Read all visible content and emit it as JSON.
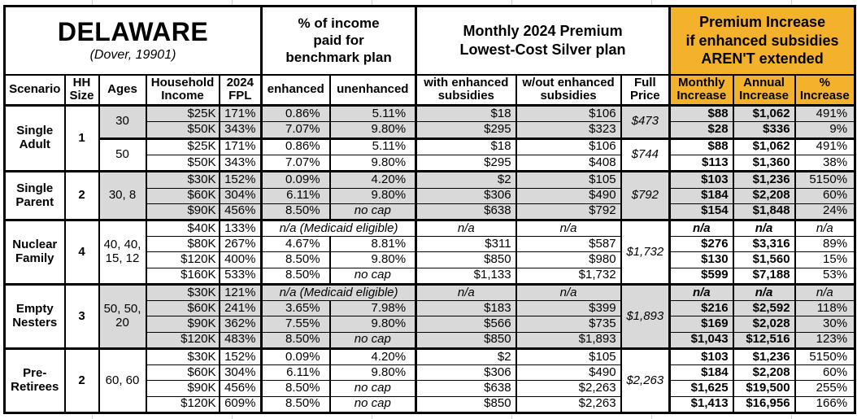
{
  "header": {
    "region": "DELAWARE",
    "location": "(Dover, 19901)",
    "income_pct_title": "% of income\npaid for\nbenchmark plan",
    "premium_title": "Monthly 2024 Premium\nLowest-Cost Silver plan",
    "increase_title": "Premium Increase\nif enhanced subsidies\nAREN'T extended"
  },
  "columns": [
    "Scenario",
    "HH\nSize",
    "Ages",
    "Household\nIncome",
    "2024\nFPL",
    "enhanced",
    "unenhanced",
    "with enhanced\nsubsidies",
    "w/out enhanced\nsubsidies",
    "Full\nPrice",
    "Monthly\nIncrease",
    "Annual\nIncrease",
    "%\nIncrease"
  ],
  "labels": {
    "medicaid": "n/a (Medicaid eligible)",
    "no_cap": "no cap",
    "na": "n/a"
  },
  "colors": {
    "accent_orange": "#F4B22C",
    "row_shade": "#D9D9D9",
    "border": "#000000"
  },
  "groups": [
    {
      "scenario": "Single\nAdult",
      "hh_size": "1",
      "blocks": [
        {
          "ages": "30",
          "shaded": true,
          "full_price": "$473",
          "rows": [
            {
              "income": "$25K",
              "fpl": "171%",
              "enhanced": "0.86%",
              "unenhanced": "5.11%",
              "with_sub": "$18",
              "wout_sub": "$106",
              "monthly": "$88",
              "annual": "$1,062",
              "pct": "491%"
            },
            {
              "income": "$50K",
              "fpl": "343%",
              "enhanced": "7.07%",
              "unenhanced": "9.80%",
              "with_sub": "$295",
              "wout_sub": "$323",
              "monthly": "$28",
              "annual": "$336",
              "pct": "9%"
            }
          ]
        },
        {
          "ages": "50",
          "shaded": false,
          "full_price": "$744",
          "rows": [
            {
              "income": "$25K",
              "fpl": "171%",
              "enhanced": "0.86%",
              "unenhanced": "5.11%",
              "with_sub": "$18",
              "wout_sub": "$106",
              "monthly": "$88",
              "annual": "$1,062",
              "pct": "491%"
            },
            {
              "income": "$50K",
              "fpl": "343%",
              "enhanced": "7.07%",
              "unenhanced": "9.80%",
              "with_sub": "$295",
              "wout_sub": "$408",
              "monthly": "$113",
              "annual": "$1,360",
              "pct": "38%"
            }
          ]
        }
      ]
    },
    {
      "scenario": "Single\nParent",
      "hh_size": "2",
      "blocks": [
        {
          "ages": "30, 8",
          "shaded": true,
          "full_price": "$792",
          "rows": [
            {
              "income": "$30K",
              "fpl": "152%",
              "enhanced": "0.09%",
              "unenhanced": "4.20%",
              "with_sub": "$2",
              "wout_sub": "$105",
              "monthly": "$103",
              "annual": "$1,236",
              "pct": "5150%"
            },
            {
              "income": "$60K",
              "fpl": "304%",
              "enhanced": "6.11%",
              "unenhanced": "9.80%",
              "with_sub": "$306",
              "wout_sub": "$490",
              "monthly": "$184",
              "annual": "$2,208",
              "pct": "60%"
            },
            {
              "income": "$90K",
              "fpl": "456%",
              "enhanced": "8.50%",
              "unenhanced": "no cap",
              "with_sub": "$638",
              "wout_sub": "$792",
              "monthly": "$154",
              "annual": "$1,848",
              "pct": "24%"
            }
          ]
        }
      ]
    },
    {
      "scenario": "Nuclear\nFamily",
      "hh_size": "4",
      "blocks": [
        {
          "ages": "40, 40,\n15, 12",
          "shaded": false,
          "full_price": "$1,732",
          "rows": [
            {
              "income": "$40K",
              "fpl": "133%",
              "medicaid": true,
              "with_sub": "n/a",
              "wout_sub": "n/a",
              "monthly": "n/a",
              "annual": "n/a",
              "pct": "n/a"
            },
            {
              "income": "$80K",
              "fpl": "267%",
              "enhanced": "4.67%",
              "unenhanced": "8.81%",
              "with_sub": "$311",
              "wout_sub": "$587",
              "monthly": "$276",
              "annual": "$3,316",
              "pct": "89%"
            },
            {
              "income": "$120K",
              "fpl": "400%",
              "enhanced": "8.50%",
              "unenhanced": "9.80%",
              "with_sub": "$850",
              "wout_sub": "$980",
              "monthly": "$130",
              "annual": "$1,560",
              "pct": "15%"
            },
            {
              "income": "$160K",
              "fpl": "533%",
              "enhanced": "8.50%",
              "unenhanced": "no cap",
              "with_sub": "$1,133",
              "wout_sub": "$1,732",
              "monthly": "$599",
              "annual": "$7,188",
              "pct": "53%"
            }
          ]
        }
      ]
    },
    {
      "scenario": "Empty\nNesters",
      "hh_size": "3",
      "blocks": [
        {
          "ages": "50, 50,\n20",
          "shaded": true,
          "full_price": "$1,893",
          "rows": [
            {
              "income": "$30K",
              "fpl": "121%",
              "medicaid": true,
              "with_sub": "n/a",
              "wout_sub": "n/a",
              "monthly": "n/a",
              "annual": "n/a",
              "pct": "n/a"
            },
            {
              "income": "$60K",
              "fpl": "241%",
              "enhanced": "3.65%",
              "unenhanced": "7.98%",
              "with_sub": "$183",
              "wout_sub": "$399",
              "monthly": "$216",
              "annual": "$2,592",
              "pct": "118%"
            },
            {
              "income": "$90K",
              "fpl": "362%",
              "enhanced": "7.55%",
              "unenhanced": "9.80%",
              "with_sub": "$566",
              "wout_sub": "$735",
              "monthly": "$169",
              "annual": "$2,028",
              "pct": "30%"
            },
            {
              "income": "$120K",
              "fpl": "483%",
              "enhanced": "8.50%",
              "unenhanced": "no cap",
              "with_sub": "$850",
              "wout_sub": "$1,893",
              "monthly": "$1,043",
              "annual": "$12,516",
              "pct": "123%"
            }
          ]
        }
      ]
    },
    {
      "scenario": "Pre-\nRetirees",
      "hh_size": "2",
      "blocks": [
        {
          "ages": "60, 60",
          "shaded": false,
          "full_price": "$2,263",
          "rows": [
            {
              "income": "$30K",
              "fpl": "152%",
              "enhanced": "0.09%",
              "unenhanced": "4.20%",
              "with_sub": "$2",
              "wout_sub": "$105",
              "monthly": "$103",
              "annual": "$1,236",
              "pct": "5150%"
            },
            {
              "income": "$60K",
              "fpl": "304%",
              "enhanced": "6.11%",
              "unenhanced": "9.80%",
              "with_sub": "$306",
              "wout_sub": "$490",
              "monthly": "$184",
              "annual": "$2,208",
              "pct": "60%"
            },
            {
              "income": "$90K",
              "fpl": "456%",
              "enhanced": "8.50%",
              "unenhanced": "no cap",
              "with_sub": "$638",
              "wout_sub": "$2,263",
              "monthly": "$1,625",
              "annual": "$19,500",
              "pct": "255%"
            },
            {
              "income": "$120K",
              "fpl": "609%",
              "enhanced": "8.50%",
              "unenhanced": "no cap",
              "with_sub": "$850",
              "wout_sub": "$2,263",
              "monthly": "$1,413",
              "annual": "$16,956",
              "pct": "166%"
            }
          ]
        }
      ]
    }
  ]
}
